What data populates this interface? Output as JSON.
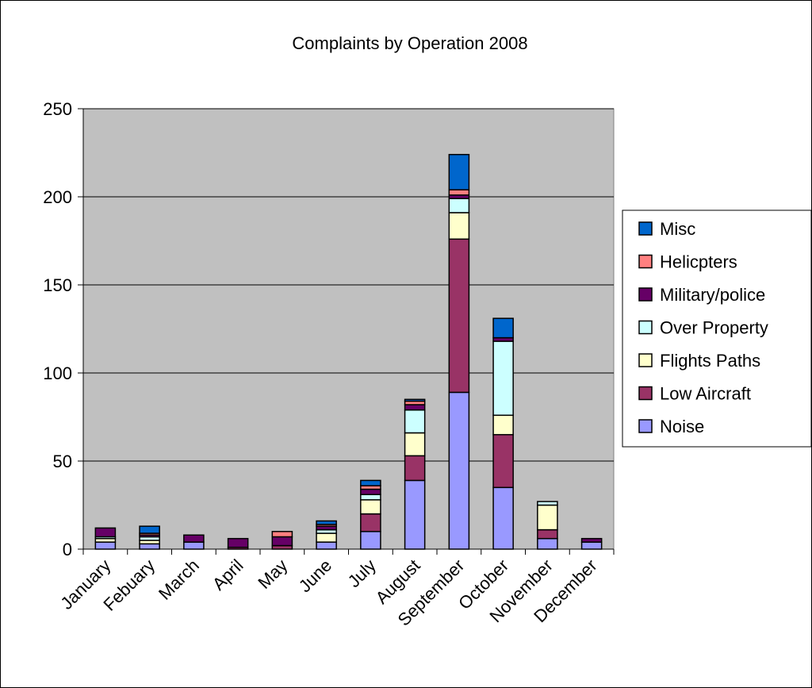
{
  "chart_data": {
    "type": "bar",
    "stacked": true,
    "title": "Complaints by Operation 2008",
    "xlabel": "",
    "ylabel": "",
    "ylim": [
      0,
      250
    ],
    "yticks": [
      0,
      50,
      100,
      150,
      200,
      250
    ],
    "grid": true,
    "legend_position": "right",
    "plot_background": "#c0c0c0",
    "categories": [
      "January",
      "Febuary",
      "March",
      "April",
      "May",
      "June",
      "July",
      "August",
      "September",
      "October",
      "November",
      "December"
    ],
    "series": [
      {
        "name": "Noise",
        "color": "#9999ff",
        "values": [
          4,
          3,
          4,
          0,
          0,
          4,
          10,
          39,
          89,
          35,
          6,
          4
        ]
      },
      {
        "name": "Low Aircraft",
        "color": "#993366",
        "values": [
          0,
          0,
          0,
          1,
          2,
          0,
          10,
          14,
          87,
          30,
          5,
          0
        ]
      },
      {
        "name": "Flights Paths",
        "color": "#ffffcc",
        "values": [
          2,
          2,
          0,
          0,
          0,
          5,
          8,
          13,
          15,
          11,
          14,
          0
        ]
      },
      {
        "name": "Over Property",
        "color": "#ccffff",
        "values": [
          1,
          2,
          0,
          0,
          0,
          2,
          3,
          13,
          8,
          42,
          2,
          0
        ]
      },
      {
        "name": "Military/police",
        "color": "#660066",
        "values": [
          5,
          1,
          4,
          5,
          5,
          2,
          3,
          3,
          2,
          2,
          0,
          2
        ]
      },
      {
        "name": "Helicpters",
        "color": "#ff8080",
        "values": [
          0,
          1,
          0,
          0,
          3,
          1,
          2,
          2,
          3,
          0,
          0,
          0
        ]
      },
      {
        "name": "Misc",
        "color": "#0066cc",
        "values": [
          0,
          4,
          0,
          0,
          0,
          2,
          3,
          1,
          20,
          11,
          0,
          0
        ]
      }
    ]
  }
}
